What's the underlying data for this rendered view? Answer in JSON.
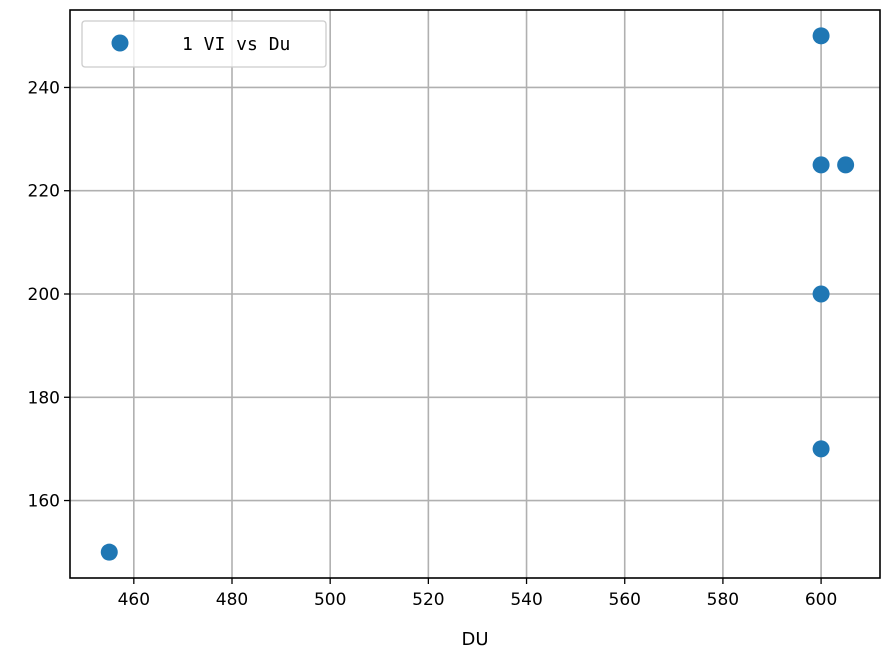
{
  "chart_data": {
    "type": "scatter",
    "title": "",
    "xlabel": "DU",
    "ylabel": "",
    "xlim": [
      447,
      612
    ],
    "ylim": [
      145,
      255
    ],
    "xticks": [
      460,
      480,
      500,
      520,
      540,
      560,
      580,
      600
    ],
    "yticks": [
      160,
      180,
      200,
      220,
      240
    ],
    "grid": true,
    "legend_position": "top-left",
    "series": [
      {
        "name": "1 VI vs Du",
        "color": "#1f77b4",
        "marker": "circle",
        "points": [
          {
            "x": 455,
            "y": 150
          },
          {
            "x": 600,
            "y": 170
          },
          {
            "x": 600,
            "y": 200
          },
          {
            "x": 600,
            "y": 225
          },
          {
            "x": 605,
            "y": 225
          },
          {
            "x": 600,
            "y": 250
          }
        ]
      }
    ]
  }
}
